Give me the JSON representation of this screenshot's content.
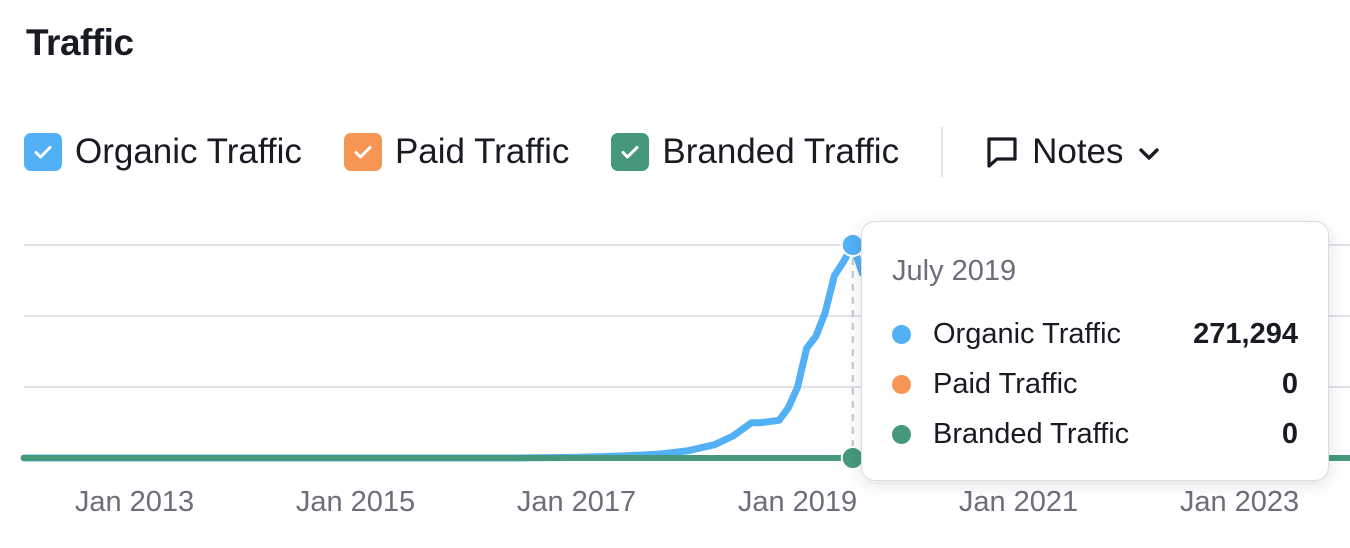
{
  "header": {
    "title": "Traffic"
  },
  "legend": {
    "items": [
      {
        "label": "Organic Traffic",
        "color": "#52b0f7",
        "checked": true,
        "icon": "check-icon"
      },
      {
        "label": "Paid Traffic",
        "color": "#f79554",
        "checked": true,
        "icon": "check-icon"
      },
      {
        "label": "Branded Traffic",
        "color": "#45997a",
        "checked": true,
        "icon": "check-icon"
      }
    ],
    "notes": {
      "label": "Notes",
      "icon": "speech-bubble-icon",
      "dropdown_icon": "chevron-down-icon"
    }
  },
  "tooltip": {
    "date": "July 2019",
    "rows": [
      {
        "name": "Organic Traffic",
        "value": "271,294",
        "color": "#52b0f7"
      },
      {
        "name": "Paid Traffic",
        "value": "0",
        "color": "#f79554"
      },
      {
        "name": "Branded Traffic",
        "value": "0",
        "color": "#45997a"
      }
    ]
  },
  "chart_data": {
    "type": "line",
    "title": "Traffic",
    "x_ticks": [
      "Jan 2013",
      "Jan 2015",
      "Jan 2017",
      "Jan 2019",
      "Jan 2021",
      "Jan 2023"
    ],
    "xlim": [
      "2012-01",
      "2024-01"
    ],
    "ylim": [
      0,
      271294
    ],
    "grid": true,
    "highlight": {
      "x": "2019-07",
      "organic": 271294,
      "paid": 0,
      "branded": 0
    },
    "series": [
      {
        "name": "Organic Traffic",
        "color": "#52b0f7",
        "points": [
          [
            "2012-01",
            0
          ],
          [
            "2016-06",
            0
          ],
          [
            "2017-01",
            800
          ],
          [
            "2017-06",
            2500
          ],
          [
            "2017-10",
            5000
          ],
          [
            "2018-01",
            9000
          ],
          [
            "2018-04",
            17000
          ],
          [
            "2018-06",
            28000
          ],
          [
            "2018-08",
            45000
          ],
          [
            "2018-09",
            45000
          ],
          [
            "2018-11",
            48000
          ],
          [
            "2018-12",
            64000
          ],
          [
            "2019-01",
            90000
          ],
          [
            "2019-02",
            140000
          ],
          [
            "2019-03",
            155000
          ],
          [
            "2019-04",
            185000
          ],
          [
            "2019-05",
            232000
          ],
          [
            "2019-06",
            250000
          ],
          [
            "2019-07",
            271294
          ],
          [
            "2019-08",
            236000
          ],
          [
            "2019-09",
            222000
          ]
        ]
      },
      {
        "name": "Paid Traffic",
        "color": "#f79554",
        "points": [
          [
            "2012-01",
            0
          ],
          [
            "2024-01",
            0
          ]
        ]
      },
      {
        "name": "Branded Traffic",
        "color": "#45997a",
        "points": [
          [
            "2012-01",
            0
          ],
          [
            "2024-01",
            0
          ]
        ]
      }
    ]
  }
}
